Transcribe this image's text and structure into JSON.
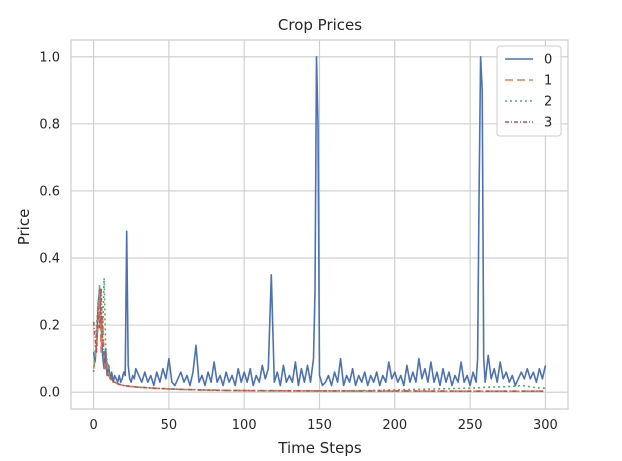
{
  "chart_data": {
    "type": "line",
    "title": "Crop Prices",
    "xlabel": "Time Steps",
    "ylabel": "Price",
    "xlim": [
      -15,
      315
    ],
    "ylim": [
      -0.05,
      1.05
    ],
    "x_ticks": [
      0,
      50,
      100,
      150,
      200,
      250,
      300
    ],
    "y_ticks": [
      0.0,
      0.2,
      0.4,
      0.6,
      0.8,
      1.0
    ],
    "x_tick_labels": [
      "0",
      "50",
      "100",
      "150",
      "200",
      "250",
      "300"
    ],
    "y_tick_labels": [
      "0.0",
      "0.2",
      "0.4",
      "0.6",
      "0.8",
      "1.0"
    ],
    "grid": true,
    "legend_position": "top-right",
    "series": [
      {
        "name": "0",
        "color": "#4c72b0",
        "dash": "solid",
        "points": [
          [
            0,
            0.12
          ],
          [
            1,
            0.09
          ],
          [
            2,
            0.15
          ],
          [
            3,
            0.26
          ],
          [
            4,
            0.31
          ],
          [
            5,
            0.2
          ],
          [
            6,
            0.11
          ],
          [
            7,
            0.07
          ],
          [
            8,
            0.13
          ],
          [
            9,
            0.05
          ],
          [
            10,
            0.08
          ],
          [
            11,
            0.04
          ],
          [
            12,
            0.06
          ],
          [
            13,
            0.03
          ],
          [
            14,
            0.05
          ],
          [
            15,
            0.04
          ],
          [
            16,
            0.03
          ],
          [
            17,
            0.05
          ],
          [
            18,
            0.03
          ],
          [
            19,
            0.04
          ],
          [
            20,
            0.06
          ],
          [
            21,
            0.05
          ],
          [
            22,
            0.48
          ],
          [
            23,
            0.08
          ],
          [
            24,
            0.04
          ],
          [
            25,
            0.03
          ],
          [
            26,
            0.05
          ],
          [
            27,
            0.04
          ],
          [
            28,
            0.07
          ],
          [
            30,
            0.05
          ],
          [
            32,
            0.03
          ],
          [
            34,
            0.06
          ],
          [
            36,
            0.03
          ],
          [
            38,
            0.05
          ],
          [
            40,
            0.02
          ],
          [
            42,
            0.06
          ],
          [
            44,
            0.03
          ],
          [
            46,
            0.07
          ],
          [
            48,
            0.04
          ],
          [
            50,
            0.1
          ],
          [
            52,
            0.03
          ],
          [
            54,
            0.02
          ],
          [
            56,
            0.04
          ],
          [
            58,
            0.06
          ],
          [
            60,
            0.03
          ],
          [
            62,
            0.05
          ],
          [
            64,
            0.02
          ],
          [
            66,
            0.06
          ],
          [
            68,
            0.14
          ],
          [
            70,
            0.03
          ],
          [
            72,
            0.05
          ],
          [
            74,
            0.02
          ],
          [
            76,
            0.06
          ],
          [
            78,
            0.03
          ],
          [
            80,
            0.09
          ],
          [
            82,
            0.03
          ],
          [
            84,
            0.05
          ],
          [
            86,
            0.02
          ],
          [
            88,
            0.06
          ],
          [
            90,
            0.03
          ],
          [
            92,
            0.05
          ],
          [
            94,
            0.02
          ],
          [
            96,
            0.07
          ],
          [
            98,
            0.03
          ],
          [
            100,
            0.06
          ],
          [
            102,
            0.03
          ],
          [
            104,
            0.07
          ],
          [
            106,
            0.02
          ],
          [
            108,
            0.05
          ],
          [
            110,
            0.03
          ],
          [
            112,
            0.08
          ],
          [
            114,
            0.04
          ],
          [
            116,
            0.07
          ],
          [
            118,
            0.35
          ],
          [
            120,
            0.03
          ],
          [
            122,
            0.06
          ],
          [
            124,
            0.02
          ],
          [
            126,
            0.08
          ],
          [
            128,
            0.03
          ],
          [
            130,
            0.05
          ],
          [
            132,
            0.03
          ],
          [
            134,
            0.09
          ],
          [
            136,
            0.02
          ],
          [
            138,
            0.07
          ],
          [
            140,
            0.03
          ],
          [
            142,
            0.08
          ],
          [
            144,
            0.03
          ],
          [
            146,
            0.1
          ],
          [
            147,
            0.3
          ],
          [
            148,
            1.0
          ],
          [
            149,
            0.8
          ],
          [
            150,
            0.05
          ],
          [
            152,
            0.02
          ],
          [
            154,
            0.03
          ],
          [
            156,
            0.05
          ],
          [
            158,
            0.02
          ],
          [
            160,
            0.06
          ],
          [
            162,
            0.03
          ],
          [
            164,
            0.1
          ],
          [
            166,
            0.02
          ],
          [
            168,
            0.05
          ],
          [
            170,
            0.03
          ],
          [
            172,
            0.07
          ],
          [
            174,
            0.02
          ],
          [
            176,
            0.05
          ],
          [
            178,
            0.03
          ],
          [
            180,
            0.06
          ],
          [
            182,
            0.02
          ],
          [
            184,
            0.05
          ],
          [
            186,
            0.03
          ],
          [
            188,
            0.06
          ],
          [
            190,
            0.02
          ],
          [
            192,
            0.05
          ],
          [
            194,
            0.03
          ],
          [
            196,
            0.09
          ],
          [
            198,
            0.04
          ],
          [
            200,
            0.06
          ],
          [
            202,
            0.03
          ],
          [
            204,
            0.05
          ],
          [
            206,
            0.02
          ],
          [
            208,
            0.08
          ],
          [
            210,
            0.03
          ],
          [
            212,
            0.06
          ],
          [
            214,
            0.03
          ],
          [
            216,
            0.1
          ],
          [
            218,
            0.04
          ],
          [
            220,
            0.07
          ],
          [
            222,
            0.03
          ],
          [
            224,
            0.09
          ],
          [
            226,
            0.03
          ],
          [
            228,
            0.06
          ],
          [
            230,
            0.02
          ],
          [
            232,
            0.07
          ],
          [
            234,
            0.03
          ],
          [
            236,
            0.06
          ],
          [
            238,
            0.02
          ],
          [
            240,
            0.05
          ],
          [
            242,
            0.03
          ],
          [
            244,
            0.09
          ],
          [
            246,
            0.03
          ],
          [
            248,
            0.05
          ],
          [
            250,
            0.02
          ],
          [
            252,
            0.06
          ],
          [
            254,
            0.03
          ],
          [
            255,
            0.1
          ],
          [
            256,
            0.6
          ],
          [
            257,
            1.0
          ],
          [
            258,
            0.9
          ],
          [
            259,
            0.1
          ],
          [
            260,
            0.03
          ],
          [
            262,
            0.11
          ],
          [
            264,
            0.04
          ],
          [
            266,
            0.07
          ],
          [
            268,
            0.03
          ],
          [
            270,
            0.09
          ],
          [
            272,
            0.04
          ],
          [
            274,
            0.06
          ],
          [
            276,
            0.03
          ],
          [
            278,
            0.05
          ],
          [
            280,
            0.02
          ],
          [
            282,
            0.04
          ],
          [
            284,
            0.06
          ],
          [
            286,
            0.04
          ],
          [
            288,
            0.07
          ],
          [
            290,
            0.04
          ],
          [
            292,
            0.06
          ],
          [
            294,
            0.03
          ],
          [
            296,
            0.07
          ],
          [
            298,
            0.04
          ],
          [
            300,
            0.08
          ]
        ]
      },
      {
        "name": "1",
        "color": "#dd8452",
        "dash": "8,4",
        "points": [
          [
            0,
            0.07
          ],
          [
            1,
            0.1
          ],
          [
            2,
            0.14
          ],
          [
            3,
            0.2
          ],
          [
            4,
            0.3
          ],
          [
            5,
            0.12
          ],
          [
            6,
            0.22
          ],
          [
            7,
            0.1
          ],
          [
            8,
            0.07
          ],
          [
            9,
            0.09
          ],
          [
            10,
            0.05
          ],
          [
            11,
            0.04
          ],
          [
            12,
            0.035
          ],
          [
            14,
            0.03
          ],
          [
            16,
            0.025
          ],
          [
            18,
            0.022
          ],
          [
            20,
            0.02
          ],
          [
            25,
            0.017
          ],
          [
            30,
            0.015
          ],
          [
            40,
            0.012
          ],
          [
            50,
            0.01
          ],
          [
            60,
            0.008
          ],
          [
            80,
            0.006
          ],
          [
            100,
            0.005
          ],
          [
            150,
            0.004
          ],
          [
            200,
            0.003
          ],
          [
            250,
            0.003
          ],
          [
            300,
            0.003
          ]
        ]
      },
      {
        "name": "2",
        "color": "#55a868",
        "dash": "2,3",
        "points": [
          [
            0,
            0.06
          ],
          [
            1,
            0.12
          ],
          [
            2,
            0.2
          ],
          [
            3,
            0.26
          ],
          [
            4,
            0.32
          ],
          [
            5,
            0.25
          ],
          [
            6,
            0.17
          ],
          [
            7,
            0.34
          ],
          [
            8,
            0.14
          ],
          [
            9,
            0.09
          ],
          [
            10,
            0.07
          ],
          [
            11,
            0.05
          ],
          [
            12,
            0.04
          ],
          [
            14,
            0.03
          ],
          [
            16,
            0.025
          ],
          [
            20,
            0.02
          ],
          [
            25,
            0.017
          ],
          [
            30,
            0.015
          ],
          [
            40,
            0.012
          ],
          [
            50,
            0.01
          ],
          [
            60,
            0.008
          ],
          [
            80,
            0.006
          ],
          [
            100,
            0.005
          ],
          [
            120,
            0.004
          ],
          [
            150,
            0.004
          ],
          [
            180,
            0.005
          ],
          [
            200,
            0.007
          ],
          [
            220,
            0.009
          ],
          [
            240,
            0.011
          ],
          [
            255,
            0.013
          ],
          [
            260,
            0.015
          ],
          [
            270,
            0.016
          ],
          [
            280,
            0.018
          ],
          [
            285,
            0.02
          ],
          [
            290,
            0.016
          ],
          [
            295,
            0.013
          ],
          [
            300,
            0.012
          ]
        ]
      },
      {
        "name": "3",
        "color": "#c44e52",
        "dash": "4,2,1,2",
        "points": [
          [
            0,
            0.21
          ],
          [
            1,
            0.16
          ],
          [
            2,
            0.12
          ],
          [
            3,
            0.25
          ],
          [
            4,
            0.19
          ],
          [
            5,
            0.31
          ],
          [
            6,
            0.15
          ],
          [
            7,
            0.11
          ],
          [
            8,
            0.08
          ],
          [
            9,
            0.06
          ],
          [
            10,
            0.05
          ],
          [
            11,
            0.045
          ],
          [
            12,
            0.04
          ],
          [
            14,
            0.03
          ],
          [
            16,
            0.025
          ],
          [
            20,
            0.02
          ],
          [
            25,
            0.017
          ],
          [
            30,
            0.015
          ],
          [
            40,
            0.012
          ],
          [
            50,
            0.01
          ],
          [
            60,
            0.008
          ],
          [
            80,
            0.006
          ],
          [
            100,
            0.005
          ],
          [
            150,
            0.004
          ],
          [
            200,
            0.004
          ],
          [
            250,
            0.003
          ],
          [
            300,
            0.003
          ]
        ]
      }
    ]
  }
}
